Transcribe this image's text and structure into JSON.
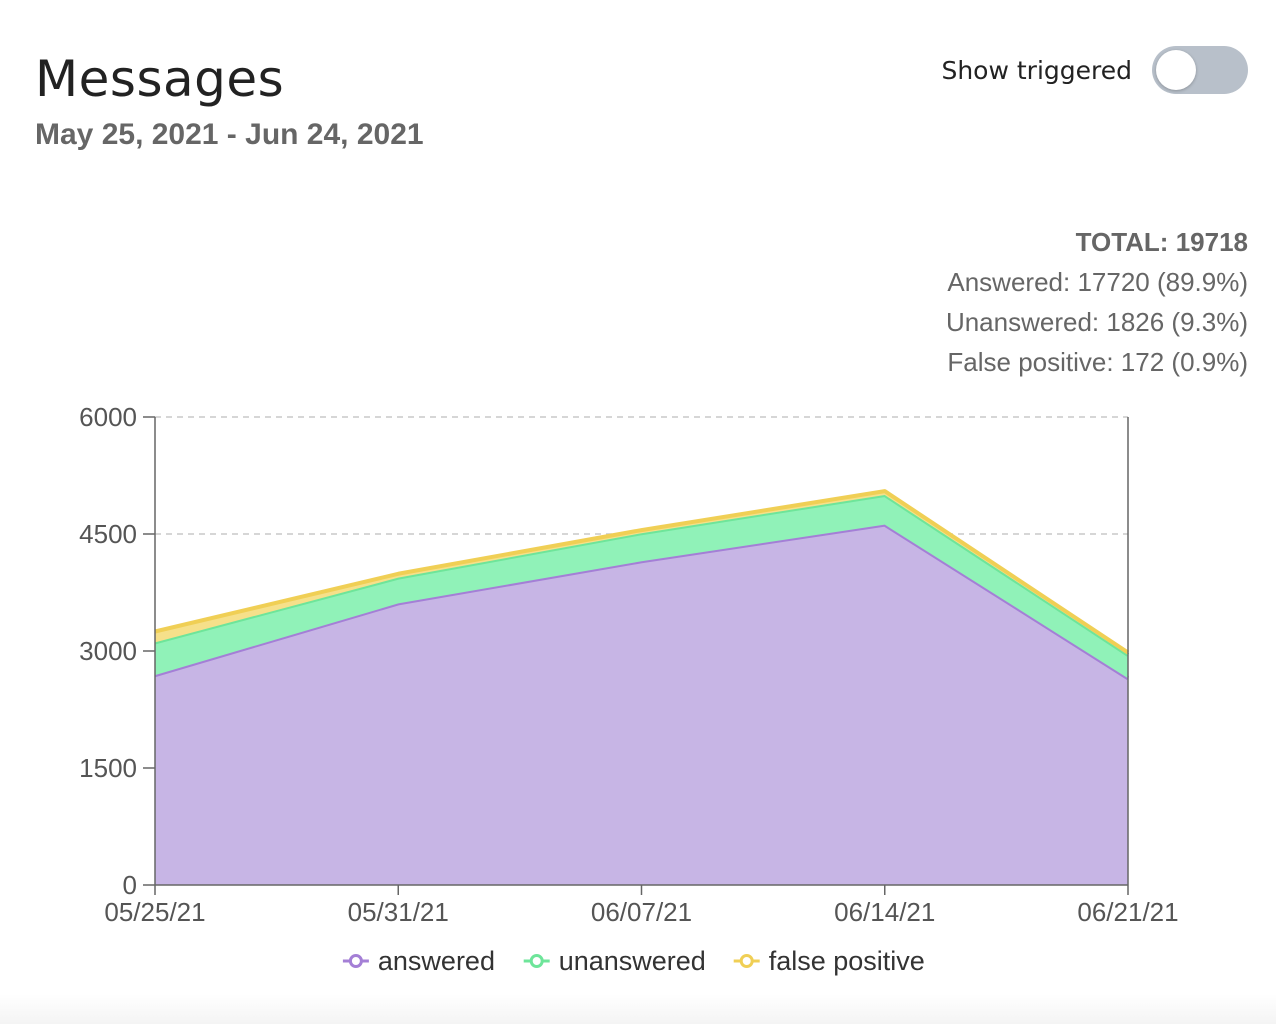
{
  "header": {
    "title": "Messages",
    "date_range": "May 25, 2021 - Jun 24, 2021"
  },
  "toggle": {
    "label": "Show triggered",
    "on": false
  },
  "summary": {
    "total": "TOTAL: 19718",
    "answered": "Answered: 17720 (89.9%)",
    "unanswered": "Unanswered: 1826 (9.3%)",
    "false_positive": "False positive: 172 (0.9%)"
  },
  "chart_data": {
    "type": "area",
    "stacked": true,
    "categories": [
      "05/25/21",
      "05/31/21",
      "06/07/21",
      "06/14/21",
      "06/21/21"
    ],
    "ylim": [
      0,
      6000
    ],
    "yticks": [
      0,
      1500,
      3000,
      4500,
      6000
    ],
    "grid": true,
    "legend_position": "bottom",
    "series": [
      {
        "name": "answered",
        "color": "#a47fd6",
        "fill": "#c7b5e5",
        "values": [
          2690,
          3610,
          4150,
          4620,
          2650
        ]
      },
      {
        "name": "unanswered",
        "color": "#6ee59a",
        "fill": "#90f2b8",
        "values": [
          420,
          330,
          360,
          380,
          300
        ]
      },
      {
        "name": "false positive",
        "color": "#f0cf55",
        "fill": "#f6e08a",
        "values": [
          140,
          50,
          40,
          50,
          30
        ]
      }
    ]
  }
}
